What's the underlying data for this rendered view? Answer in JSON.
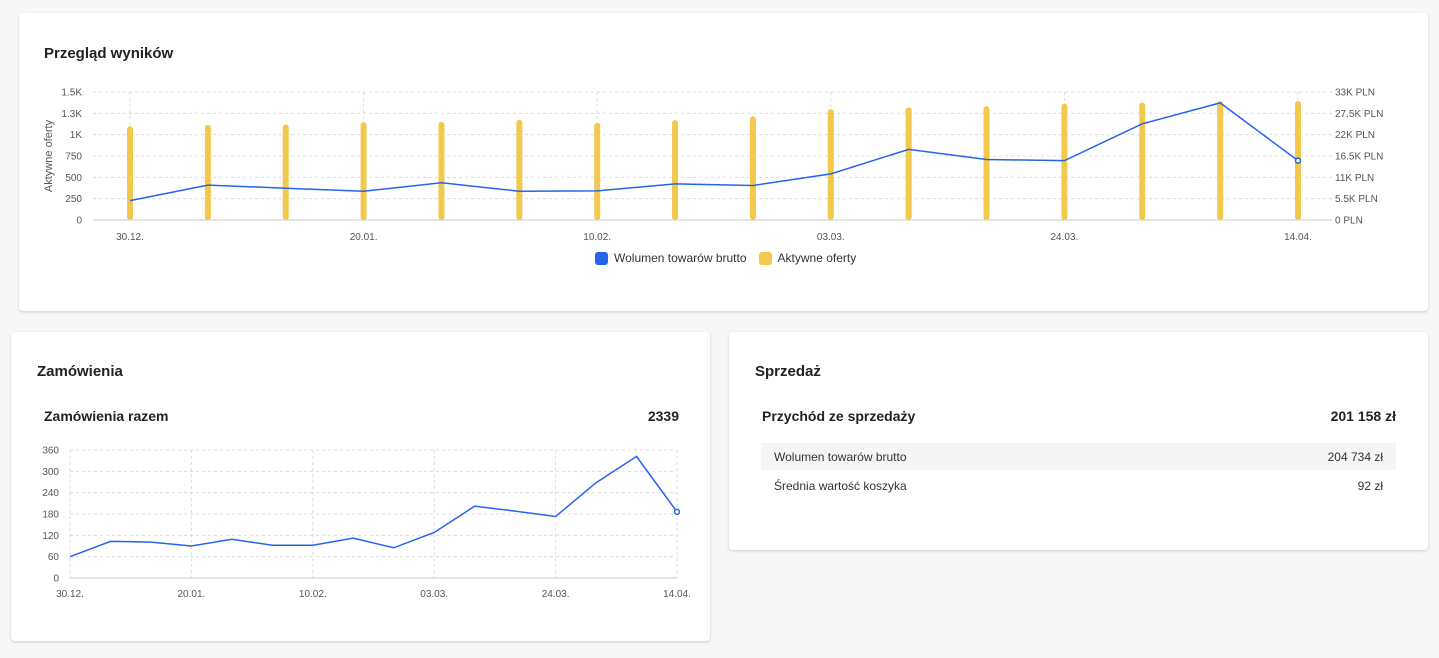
{
  "overview": {
    "title": "Przegląd wyników",
    "legend": {
      "gmv_label": "Wolumen towarów brutto",
      "offers_label": "Aktywne oferty"
    }
  },
  "orders": {
    "title": "Zamówienia",
    "total_label": "Zamówienia razem",
    "total_value": "2339"
  },
  "sales": {
    "title": "Sprzedaż",
    "revenue_label": "Przychód ze sprzedaży",
    "revenue_value": "201 158 zł",
    "rows": [
      {
        "label": "Wolumen towarów brutto",
        "value": "204 734 zł"
      },
      {
        "label": "Średnia wartość koszyka",
        "value": "92 zł"
      }
    ]
  },
  "colors": {
    "line": "#2563eb",
    "bar": "#f2c94c",
    "grid": "#dcdcdc"
  },
  "chart_data": [
    {
      "type": "bar+line",
      "ylabel": "Aktywne oferty",
      "x_tick_labels": [
        "30.12.",
        "20.01.",
        "10.02.",
        "03.03.",
        "24.03.",
        "14.04."
      ],
      "y_left_ticks": [
        "0",
        "250",
        "500",
        "750",
        "1K",
        "1.3K",
        "1.5K"
      ],
      "y_left_values": [
        0,
        250,
        500,
        750,
        1000,
        1250,
        1500
      ],
      "ylim_left": [
        0,
        1500
      ],
      "y_right_ticks": [
        "0 PLN",
        "5.5K PLN",
        "11K PLN",
        "16.5K PLN",
        "22K PLN",
        "27.5K PLN",
        "33K PLN"
      ],
      "y_right_values": [
        0,
        5500,
        11000,
        16500,
        22000,
        27500,
        33000
      ],
      "ylim_right": [
        0,
        33000
      ],
      "series": [
        {
          "name": "Aktywne oferty",
          "axis": "left",
          "kind": "bar",
          "values": [
            1100,
            1115,
            1120,
            1145,
            1150,
            1175,
            1140,
            1170,
            1215,
            1300,
            1320,
            1335,
            1365,
            1375,
            1395,
            1395
          ]
        },
        {
          "name": "Wolumen towarów brutto",
          "axis": "right",
          "kind": "line",
          "values": [
            5000,
            9000,
            8200,
            7400,
            9600,
            7400,
            7500,
            9300,
            8900,
            11900,
            18200,
            15600,
            15300,
            24800,
            30200,
            15300
          ]
        }
      ],
      "grid": true,
      "legend_position": "bottom-center"
    },
    {
      "type": "line",
      "x_tick_labels": [
        "30.12.",
        "20.01.",
        "10.02.",
        "03.03.",
        "24.03.",
        "14.04."
      ],
      "y_ticks": [
        "0",
        "60",
        "120",
        "180",
        "240",
        "300",
        "360"
      ],
      "y_values": [
        0,
        60,
        120,
        180,
        240,
        300,
        360
      ],
      "ylim": [
        0,
        360
      ],
      "series": [
        {
          "values": [
            60,
            103,
            101,
            90,
            109,
            92,
            92,
            112,
            85,
            128,
            202,
            188,
            173,
            268,
            342,
            186
          ]
        }
      ],
      "grid": true
    }
  ]
}
